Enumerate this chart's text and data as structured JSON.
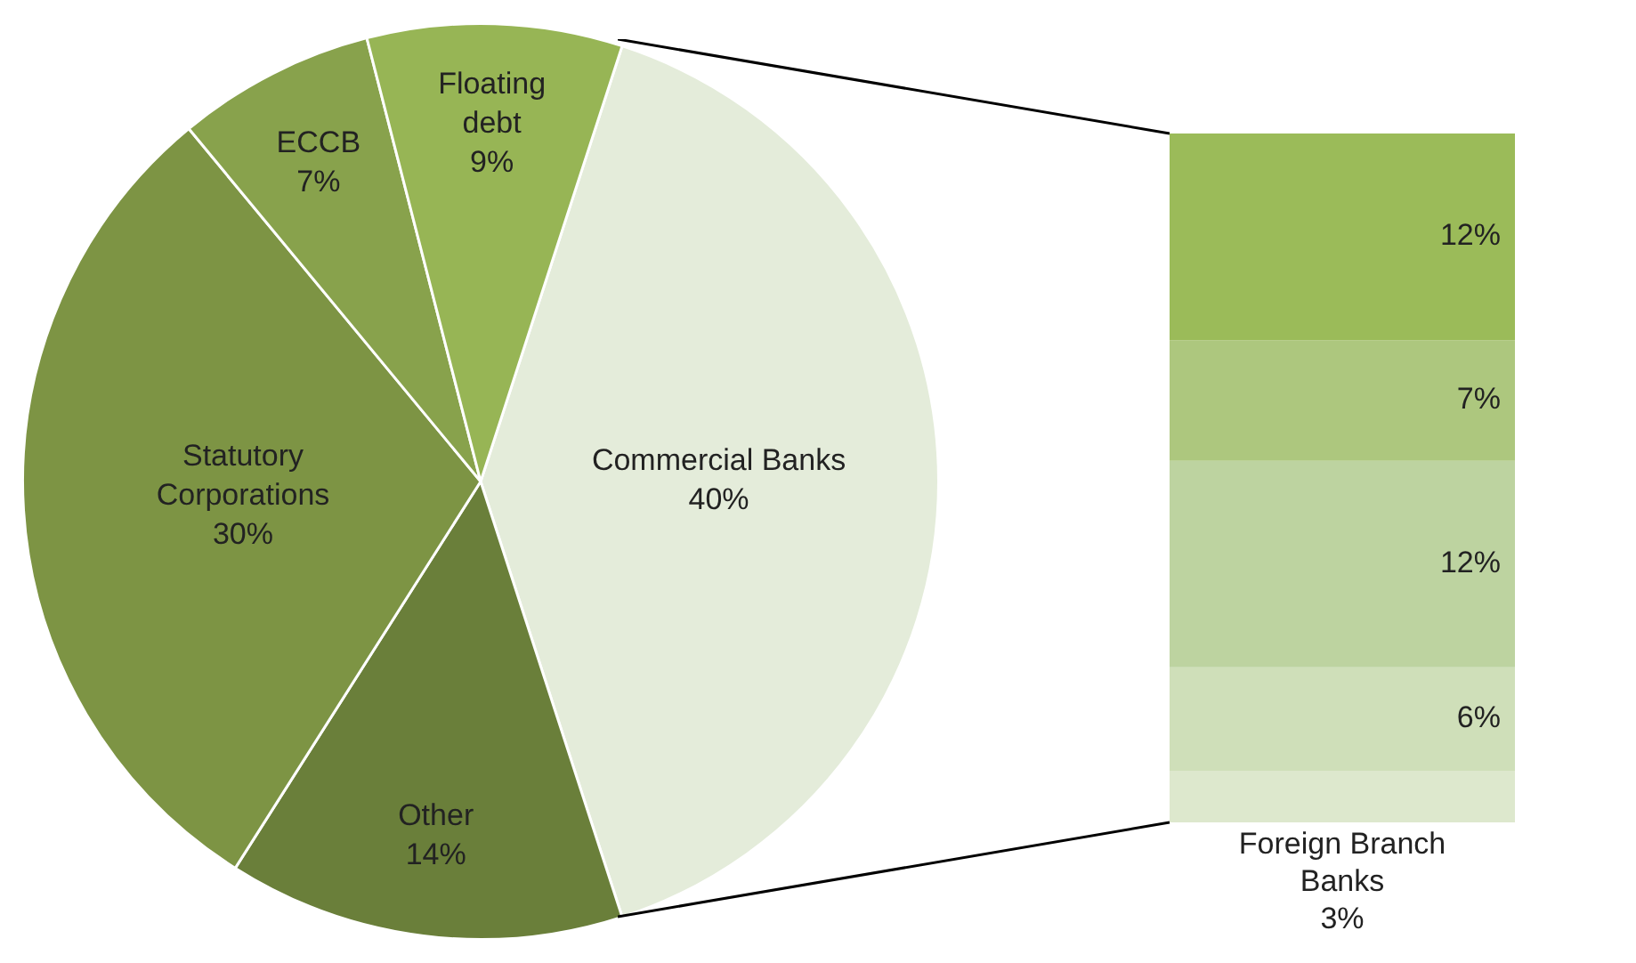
{
  "chart_data": [
    {
      "type": "pie",
      "categories": [
        "Commercial Banks",
        "Other",
        "Statutory Corporations",
        "ECCB",
        "Floating debt"
      ],
      "values": [
        40,
        14,
        30,
        7,
        9
      ],
      "colors": [
        "#e4ecda",
        "#6a7f3a",
        "#7d9444",
        "#88a24c",
        "#97b555"
      ],
      "value_labels": [
        "40%",
        "14%",
        "30%",
        "7%",
        "9%"
      ],
      "legend": false
    },
    {
      "type": "bar",
      "stacked": true,
      "categories": [
        null
      ],
      "tick_labels": false,
      "legend": false,
      "series": [
        {
          "name": "Foreign Branch Banks",
          "color": "#dde8cd",
          "values": [
            3
          ],
          "value_labels": [
            "3%"
          ]
        },
        {
          "color": "#cfdfb9",
          "values": [
            6
          ],
          "value_labels": [
            "6%"
          ]
        },
        {
          "color": "#bdd3a0",
          "values": [
            12
          ],
          "value_labels": [
            "12%"
          ]
        },
        {
          "color": "#adc77e",
          "values": [
            7
          ],
          "value_labels": [
            "7%"
          ]
        },
        {
          "color": "#9bbb59",
          "values": [
            12
          ],
          "value_labels": [
            "12%"
          ]
        }
      ]
    }
  ]
}
